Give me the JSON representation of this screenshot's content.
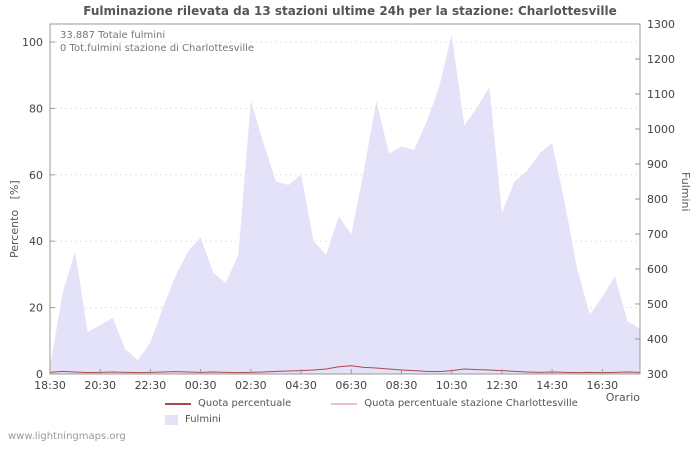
{
  "page": {
    "watermark": "www.lightningmaps.org"
  },
  "chart": {
    "title": "Fulminazione rilevata da 13 stazioni ultime 24h per la stazione: Charlottesville",
    "total_annotation": "33.887 Totale fulmini",
    "station_annotation": "0 Tot.fulmini stazione di Charlottesville",
    "y_left_label": "Percento   [%]",
    "y_right_label": "Fulmini",
    "x_label": "Orario"
  },
  "chart_data": {
    "type": "area",
    "title": "Fulminazione rilevata da 13 stazioni ultime 24h per la stazione: Charlottesville",
    "x_label": "Orario",
    "y_left": {
      "label": "Percento [%]",
      "min": 0,
      "max": 100,
      "ticks": [
        0,
        20,
        40,
        60,
        80,
        100
      ]
    },
    "y_right": {
      "label": "Fulmini",
      "min": 300,
      "max": 1300,
      "ticks": [
        300,
        400,
        500,
        600,
        700,
        800,
        900,
        1000,
        1100,
        1200,
        1300
      ]
    },
    "x": [
      "18:30",
      "19:00",
      "19:30",
      "20:00",
      "20:30",
      "21:00",
      "21:30",
      "22:00",
      "22:30",
      "23:00",
      "23:30",
      "00:00",
      "00:30",
      "01:00",
      "01:30",
      "02:00",
      "02:30",
      "03:00",
      "03:30",
      "04:00",
      "04:30",
      "05:00",
      "05:30",
      "06:00",
      "06:30",
      "07:00",
      "07:30",
      "08:00",
      "08:30",
      "09:00",
      "09:30",
      "10:00",
      "10:30",
      "11:00",
      "11:30",
      "12:00",
      "12:30",
      "13:00",
      "13:30",
      "14:00",
      "14:30",
      "15:00",
      "15:30",
      "16:00",
      "16:30",
      "17:00",
      "17:30",
      "18:00"
    ],
    "x_ticks": [
      {
        "label": "18:30",
        "index": 0
      },
      {
        "label": "20:30",
        "index": 4
      },
      {
        "label": "22:30",
        "index": 8
      },
      {
        "label": "00:30",
        "index": 12
      },
      {
        "label": "02:30",
        "index": 16
      },
      {
        "label": "04:30",
        "index": 20
      },
      {
        "label": "06:30",
        "index": 24
      },
      {
        "label": "08:30",
        "index": 28
      },
      {
        "label": "10:30",
        "index": 32
      },
      {
        "label": "12:30",
        "index": 36
      },
      {
        "label": "14:30",
        "index": 40
      },
      {
        "label": "16:30",
        "index": 44
      }
    ],
    "series": [
      {
        "name": "Fulmini",
        "type": "area",
        "axis": "right",
        "color": "#e4e2f9",
        "values": [
          320,
          530,
          650,
          420,
          440,
          460,
          370,
          340,
          390,
          490,
          580,
          650,
          690,
          590,
          560,
          640,
          1080,
          960,
          850,
          840,
          870,
          680,
          640,
          750,
          700,
          880,
          1080,
          930,
          950,
          940,
          1020,
          1120,
          1270,
          1010,
          1060,
          1120,
          760,
          850,
          880,
          930,
          960,
          790,
          600,
          470,
          520,
          580,
          450,
          430
        ]
      },
      {
        "name": "Quota percentuale",
        "type": "line",
        "axis": "left",
        "color": "#aa4a4a",
        "values": [
          0.5,
          0.8,
          0.6,
          0.4,
          0.5,
          0.6,
          0.5,
          0.4,
          0.5,
          0.6,
          0.7,
          0.6,
          0.5,
          0.6,
          0.5,
          0.4,
          0.5,
          0.6,
          0.8,
          0.9,
          1.0,
          1.2,
          1.5,
          2.2,
          2.5,
          2.0,
          1.8,
          1.5,
          1.2,
          1.0,
          0.8,
          0.7,
          1.0,
          1.5,
          1.3,
          1.2,
          1.0,
          0.8,
          0.6,
          0.5,
          0.6,
          0.5,
          0.4,
          0.5,
          0.4,
          0.5,
          0.6,
          0.5
        ]
      },
      {
        "name": "Quota percentuale stazione Charlottesville",
        "type": "line",
        "axis": "left",
        "color": "#eec0c8",
        "values": [
          0,
          0,
          0,
          0,
          0,
          0,
          0,
          0,
          0,
          0,
          0,
          0,
          0,
          0,
          0,
          0,
          0,
          0,
          0,
          0,
          0,
          0,
          0,
          0,
          0,
          0,
          0,
          0,
          0,
          0,
          0,
          0,
          0,
          0,
          0,
          0,
          0,
          0,
          0,
          0,
          0,
          0,
          0,
          0,
          0,
          0,
          0,
          0
        ]
      }
    ],
    "totals": {
      "totale_fulmini": "33.887",
      "stazione_fulmini": "0"
    },
    "grid": true,
    "legend_position": "bottom"
  }
}
